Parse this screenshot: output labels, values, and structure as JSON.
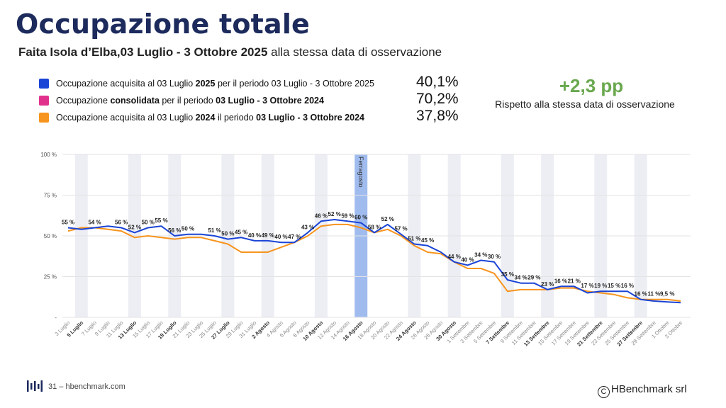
{
  "title": "Occupazione totale",
  "subtitle_bold": "Faita Isola d’Elba,03 Luglio - 3 Ottobre 2025",
  "subtitle_rest": " alla stessa data di osservazione",
  "legend": [
    {
      "parts": [
        {
          "t": "Occupazione acquisita al 03 Luglio ",
          "b": false
        },
        {
          "t": "2025",
          "b": true
        },
        {
          "t": " per il periodo 03 Luglio - 3 Ottobre 2025",
          "b": false
        }
      ],
      "value": "40,1%",
      "color": "#1a44d6"
    },
    {
      "parts": [
        {
          "t": "Occupazione ",
          "b": false
        },
        {
          "t": "consolidata",
          "b": true
        },
        {
          "t": "  per il periodo ",
          "b": false
        },
        {
          "t": "03 Luglio - 3 Ottobre 2024",
          "b": true
        }
      ],
      "value": "70,2%",
      "color": "#e0328c"
    },
    {
      "parts": [
        {
          "t": "Occupazione acquisita al 03 Luglio ",
          "b": false
        },
        {
          "t": "2024",
          "b": true
        },
        {
          "t": " il periodo ",
          "b": false
        },
        {
          "t": "03 Luglio - 3 Ottobre 2024",
          "b": true
        }
      ],
      "value": "37,8%",
      "color": "#f7941d"
    }
  ],
  "delta": {
    "value": "+2,3 pp",
    "label": "Rispetto alla stessa data di osservazione",
    "color": "#6aa84f"
  },
  "footer": {
    "page": "31 – hbenchmark.com",
    "copyright": "HBenchmark srl"
  },
  "chart_data": {
    "type": "line",
    "ylim": [
      0,
      100
    ],
    "yticks": [
      0,
      25,
      50,
      75,
      100
    ],
    "ytick_labels": [
      "-",
      "25 %",
      "50 %",
      "75 %",
      "100 %"
    ],
    "grid": true,
    "x": [
      "3 Luglio",
      "5 Luglio",
      "7 Luglio",
      "9 Luglio",
      "11 Luglio",
      "13 Luglio",
      "15 Luglio",
      "17 Luglio",
      "19 Luglio",
      "21 Luglio",
      "23 Luglio",
      "25 Luglio",
      "27 Luglio",
      "29 Luglio",
      "31 Luglio",
      "2 Agosto",
      "4 Agosto",
      "6 Agosto",
      "8 Agosto",
      "10 Agosto",
      "12 Agosto",
      "14 Agosto",
      "16 Agosto",
      "18 Agosto",
      "20 Agosto",
      "22 Agosto",
      "24 Agosto",
      "26 Agosto",
      "28 Agosto",
      "30 Agosto",
      "1 Settembre",
      "3 Settembre",
      "5 Settembre",
      "7 Settembre",
      "9 Settembre",
      "11 Settembre",
      "13 Settembre",
      "15 Settembre",
      "17 Settembre",
      "19 Settembre",
      "21 Settembre",
      "23 Settembre",
      "25 Settembre",
      "27 Settembre",
      "29 Settembre",
      "1 Ottobre",
      "3 Ottobre"
    ],
    "bold_x": [
      "5 Luglio",
      "13 Luglio",
      "19 Luglio",
      "27 Luglio",
      "2 Agosto",
      "10 Agosto",
      "16 Agosto",
      "24 Agosto",
      "30 Agosto",
      "7 Settembre",
      "13 Settembre",
      "21 Settembre",
      "27 Settembre"
    ],
    "weekend_bands": [
      "5 Luglio",
      "13 Luglio",
      "19 Luglio",
      "27 Luglio",
      "2 Agosto",
      "10 Agosto",
      "24 Agosto",
      "30 Agosto",
      "7 Settembre",
      "13 Settembre",
      "21 Settembre",
      "27 Settembre"
    ],
    "highlight": {
      "x": "16 Agosto",
      "label": "Ferragosto",
      "color": "#8fb0ec"
    },
    "series": [
      {
        "color": "#1a44d6",
        "values": [
          55,
          54,
          55,
          56,
          55,
          52,
          55,
          56,
          50,
          51,
          51,
          50,
          48,
          49,
          47,
          47,
          46,
          46,
          52,
          59,
          60,
          59,
          58,
          52,
          57,
          51,
          45,
          44,
          40,
          34,
          32,
          35,
          34,
          23,
          21,
          21,
          17,
          19,
          19,
          15,
          16,
          16,
          16,
          11,
          10,
          9.5,
          9
        ]
      },
      {
        "color": "#f7941d",
        "values": [
          53,
          55,
          55,
          54,
          53,
          49,
          50,
          49,
          48,
          49,
          49,
          47,
          45,
          40,
          40,
          40,
          43,
          46,
          50,
          56,
          57,
          57,
          55,
          52,
          54,
          50,
          44,
          40,
          39,
          34,
          30,
          30,
          27,
          16,
          17,
          17,
          17,
          18,
          18,
          16,
          15,
          14,
          12,
          11,
          11,
          11,
          10
        ]
      }
    ],
    "point_labels": [
      {
        "x": "3 Luglio",
        "text": "55 %"
      },
      {
        "x": "7 Luglio",
        "text": "54 %"
      },
      {
        "x": "11 Luglio",
        "text": "56 %"
      },
      {
        "x": "13 Luglio",
        "text": "52 %"
      },
      {
        "x": "15 Luglio",
        "text": "50 %"
      },
      {
        "x": "17 Luglio",
        "text": "55 %"
      },
      {
        "x": "19 Luglio",
        "text": "56 %"
      },
      {
        "x": "21 Luglio",
        "text": "50 %"
      },
      {
        "x": "25 Luglio",
        "text": "51 %"
      },
      {
        "x": "27 Luglio",
        "text": "50 %"
      },
      {
        "x": "29 Luglio",
        "text": "45 %"
      },
      {
        "x": "31 Luglio",
        "text": "40 %"
      },
      {
        "x": "2 Agosto",
        "text": "49 %"
      },
      {
        "x": "4 Agosto",
        "text": "40 %"
      },
      {
        "x": "6 Agosto",
        "text": "47 %"
      },
      {
        "x": "8 Agosto",
        "text": "43 %"
      },
      {
        "x": "10 Agosto",
        "text": "46 %"
      },
      {
        "x": "12 Agosto",
        "text": "52 %"
      },
      {
        "x": "14 Agosto",
        "text": "59 %"
      },
      {
        "x": "16 Agosto",
        "text": "60 %"
      },
      {
        "x": "18 Agosto",
        "text": "58 %"
      },
      {
        "x": "20 Agosto",
        "text": "52 %"
      },
      {
        "x": "22 Agosto",
        "text": "57 %"
      },
      {
        "x": "24 Agosto",
        "text": "51 %"
      },
      {
        "x": "26 Agosto",
        "text": "45 %"
      },
      {
        "x": "30 Agosto",
        "text": "44 %"
      },
      {
        "x": "1 Settembre",
        "text": "40 %"
      },
      {
        "x": "3 Settembre",
        "text": "34 %"
      },
      {
        "x": "5 Settembre",
        "text": "30 %"
      },
      {
        "x": "7 Settembre",
        "text": "35 %"
      },
      {
        "x": "9 Settembre",
        "text": "34 %"
      },
      {
        "x": "11 Settembre",
        "text": "29 %"
      },
      {
        "x": "13 Settembre",
        "text": "23 %"
      },
      {
        "x": "15 Settembre",
        "text": "16 %"
      },
      {
        "x": "17 Settembre",
        "text": "21 %"
      },
      {
        "x": "19 Settembre",
        "text": "17 %"
      },
      {
        "x": "21 Settembre",
        "text": "19 %"
      },
      {
        "x": "23 Settembre",
        "text": "15 %"
      },
      {
        "x": "25 Settembre",
        "text": "16 %"
      },
      {
        "x": "27 Settembre",
        "text": "16 %"
      },
      {
        "x": "29 Settembre",
        "text": "11 %"
      },
      {
        "x": "1 Ottobre",
        "text": "9,5 %"
      }
    ]
  }
}
